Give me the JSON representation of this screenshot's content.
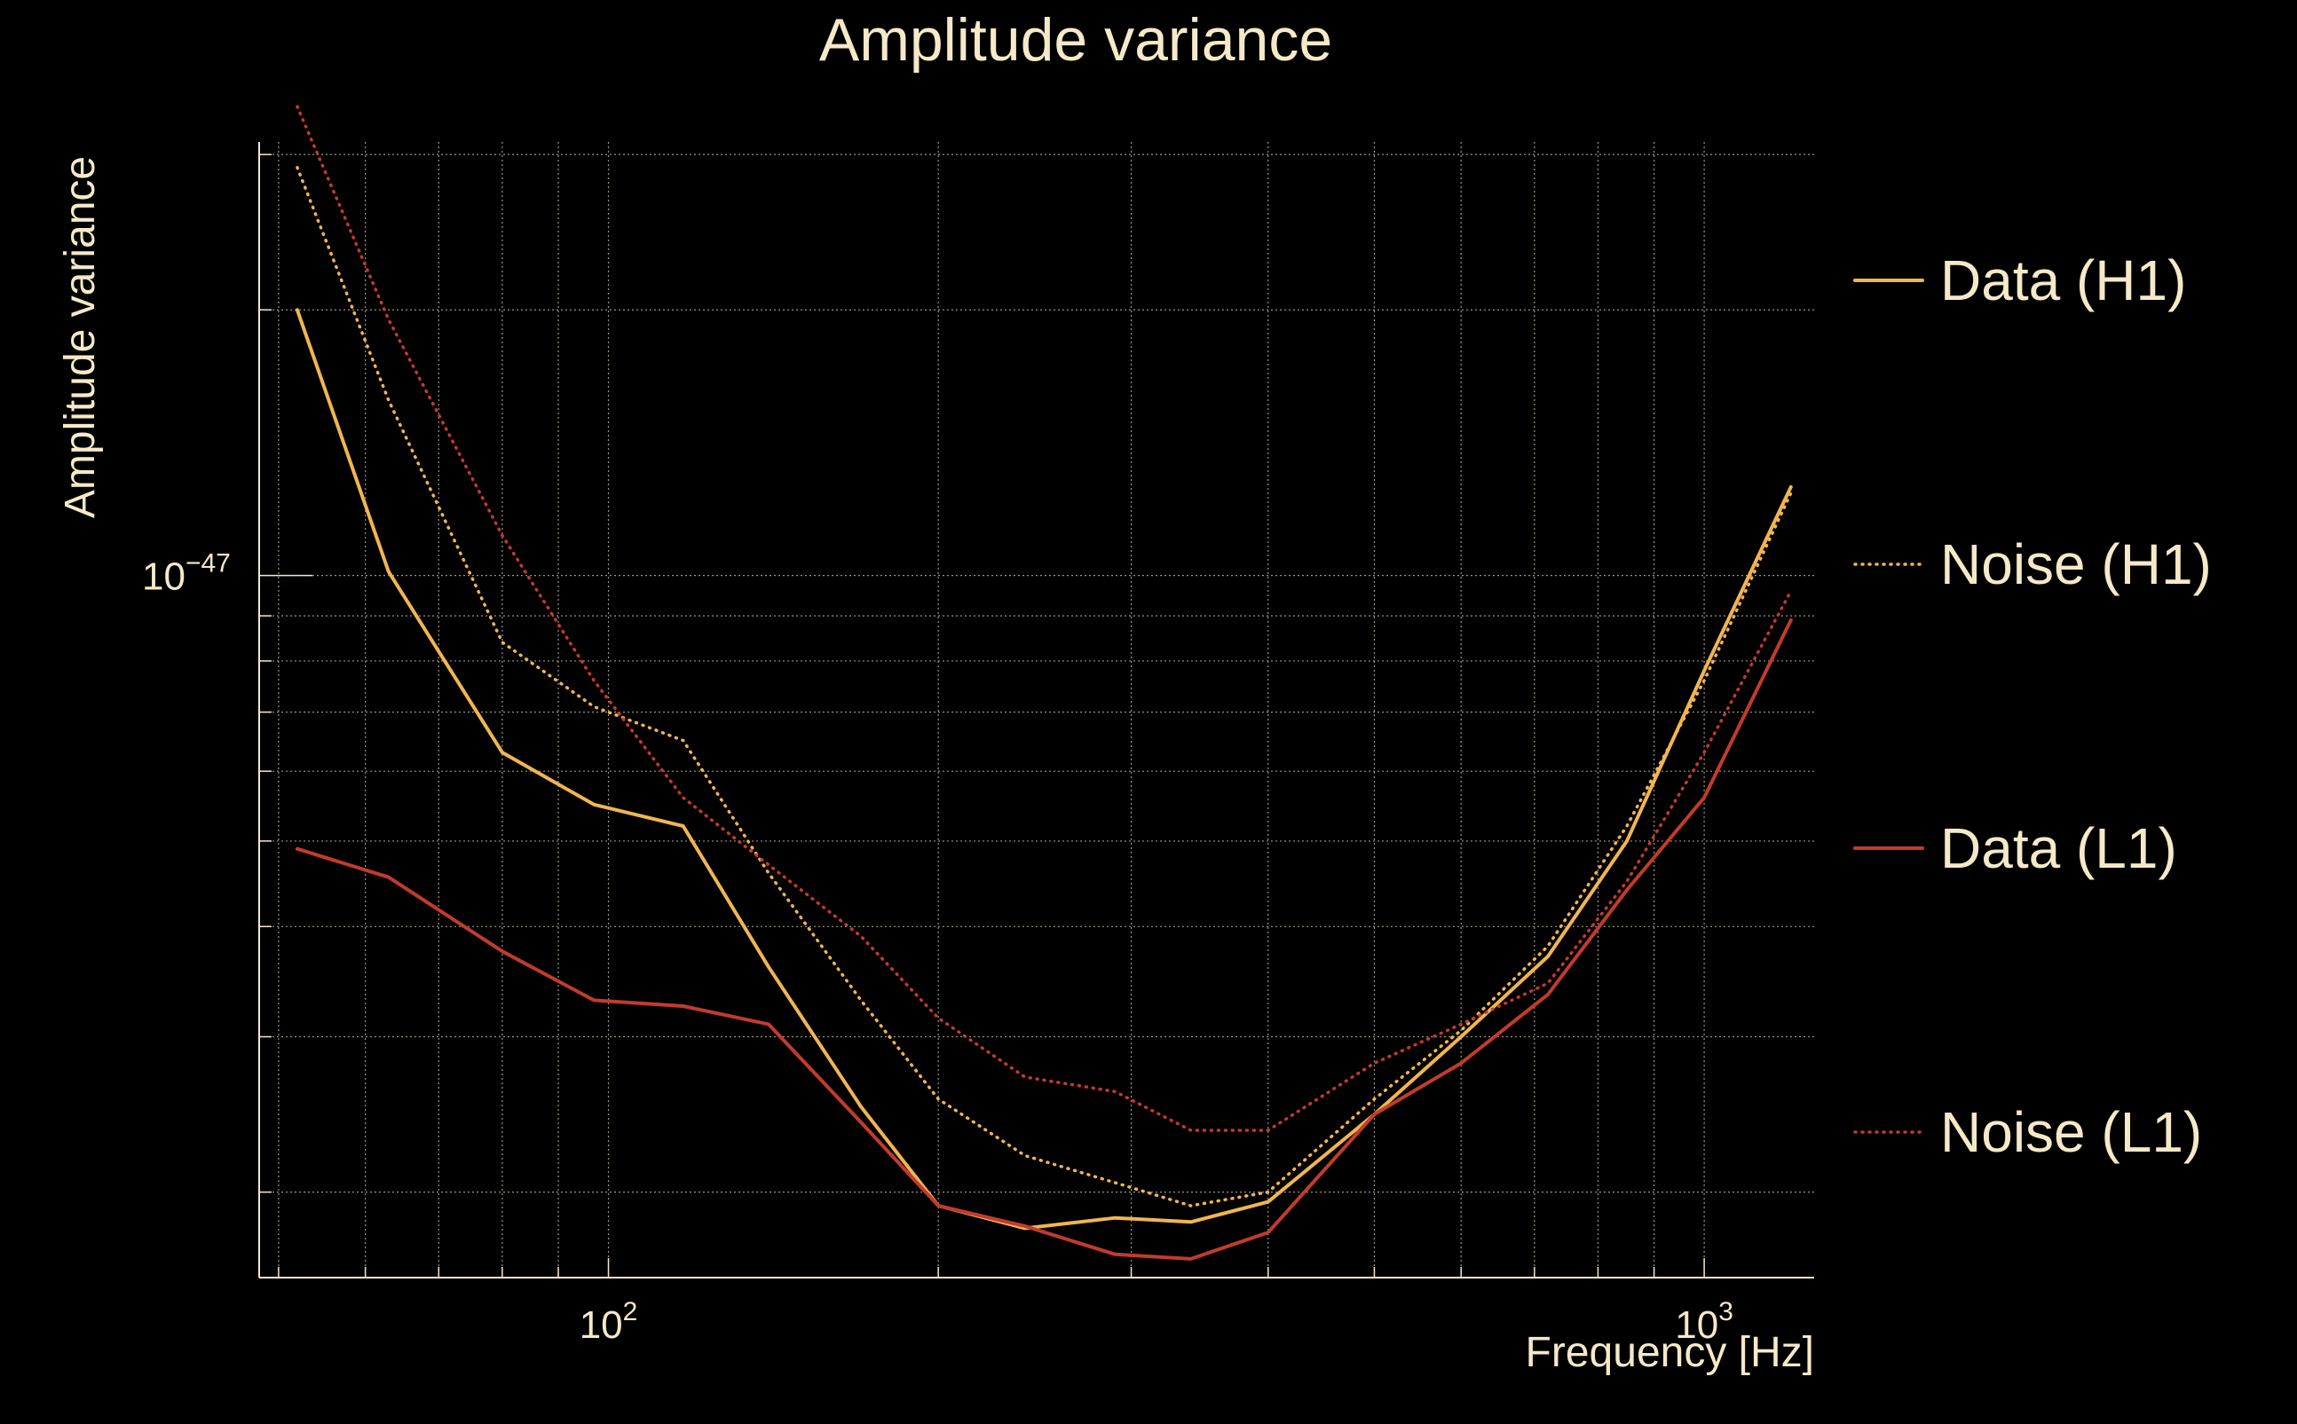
{
  "chart_data": {
    "type": "line",
    "title": "Amplitude variance",
    "xlabel": "Frequency [Hz]",
    "ylabel": "Amplitude variance",
    "x_scale": "log",
    "y_scale": "log",
    "xlim": [
      48,
      1260
    ],
    "ylim": [
      1.6e-48,
      3.1e-47
    ],
    "grid": true,
    "legend_position": "right",
    "background_color": "#000000",
    "text_color": "#f5e9c8",
    "x_tick_labels": [
      {
        "value": 100,
        "base": "10",
        "exp": "2"
      },
      {
        "value": 1000,
        "base": "10",
        "exp": "3"
      }
    ],
    "y_tick_labels": [
      {
        "value": 1e-47,
        "base": "10",
        "exp": "−47"
      }
    ],
    "series": [
      {
        "name": "Data (H1)",
        "color": "#f0b552",
        "style": "solid",
        "x": [
          52,
          63,
          80,
          97,
          117,
          140,
          170,
          200,
          240,
          290,
          340,
          400,
          500,
          600,
          720,
          850,
          1000,
          1200
        ],
        "y": [
          2e-47,
          1.01e-47,
          6.3e-48,
          5.5e-48,
          5.2e-48,
          3.6e-48,
          2.5e-48,
          1.93e-48,
          1.82e-48,
          1.87e-48,
          1.85e-48,
          1.95e-48,
          2.45e-48,
          3e-48,
          3.7e-48,
          5e-48,
          7.8e-48,
          1.26e-47
        ]
      },
      {
        "name": "Noise (H1)",
        "color": "#f0b552",
        "style": "dotted",
        "x": [
          52,
          63,
          80,
          97,
          117,
          140,
          170,
          200,
          240,
          290,
          340,
          400,
          500,
          600,
          720,
          850,
          1000,
          1200
        ],
        "y": [
          2.9e-47,
          1.58e-47,
          8.4e-48,
          7.1e-48,
          6.5e-48,
          4.6e-48,
          3.3e-48,
          2.55e-48,
          2.2e-48,
          2.05e-48,
          1.93e-48,
          2e-48,
          2.55e-48,
          3.05e-48,
          3.8e-48,
          5.2e-48,
          7.6e-48,
          1.24e-47
        ]
      },
      {
        "name": "Data (L1)",
        "color": "#c23b2d",
        "style": "solid",
        "x": [
          52,
          63,
          80,
          97,
          117,
          140,
          170,
          200,
          240,
          290,
          340,
          400,
          500,
          600,
          720,
          850,
          1000,
          1200
        ],
        "y": [
          4.9e-48,
          4.55e-48,
          3.75e-48,
          3.3e-48,
          3.25e-48,
          3.1e-48,
          2.4e-48,
          1.93e-48,
          1.83e-48,
          1.7e-48,
          1.68e-48,
          1.8e-48,
          2.45e-48,
          2.8e-48,
          3.35e-48,
          4.4e-48,
          5.6e-48,
          8.9e-48
        ]
      },
      {
        "name": "Noise (L1)",
        "color": "#c23b2d",
        "style": "dotted",
        "x": [
          52,
          63,
          80,
          97,
          117,
          140,
          170,
          200,
          240,
          290,
          340,
          400,
          500,
          600,
          720,
          850,
          1000,
          1200
        ],
        "y": [
          3.4e-47,
          1.95e-47,
          1.11e-47,
          7.6e-48,
          5.6e-48,
          4.7e-48,
          3.9e-48,
          3.15e-48,
          2.7e-48,
          2.6e-48,
          2.35e-48,
          2.35e-48,
          2.8e-48,
          3.1e-48,
          3.45e-48,
          4.5e-48,
          6.3e-48,
          9.6e-48
        ]
      }
    ]
  }
}
